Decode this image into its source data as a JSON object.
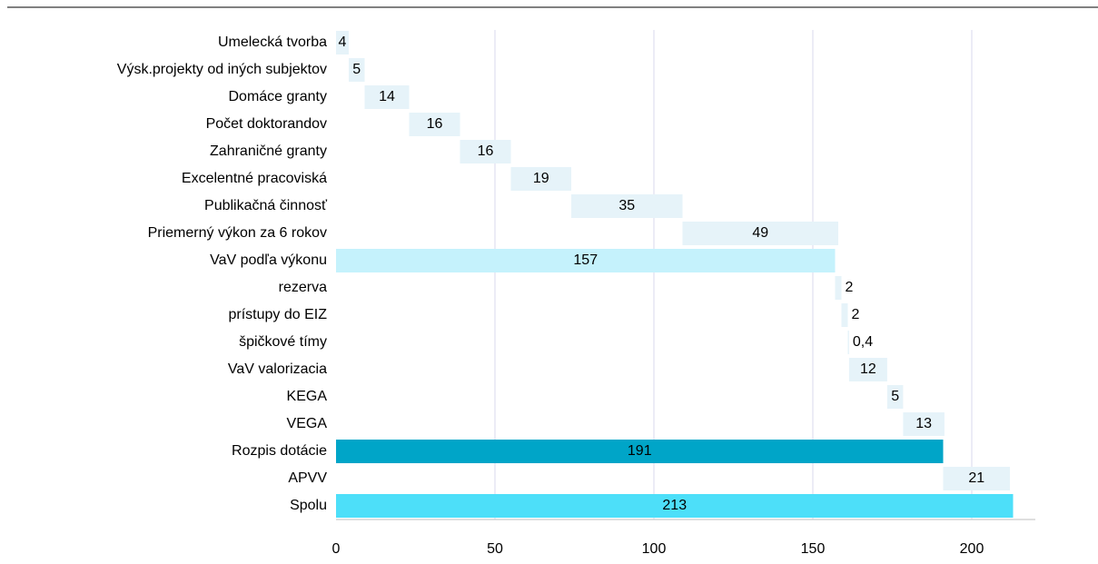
{
  "chart_data": {
    "type": "waterfall",
    "categories": [
      "Umelecká tvorba",
      "Výsk.projekty od iných subjektov",
      "Domáce granty",
      "Počet doktorandov",
      "Zahraničné granty",
      "Excelentné pracoviská",
      "Publikačná  činnosť",
      "Priemerný výkon za 6 rokov",
      "VaV podľa výkonu",
      "rezerva",
      "prístupy do EIZ",
      "špičkové tímy",
      "VaV valorizacia",
      "KEGA",
      "VEGA",
      "Rozpis dotácie",
      "APVV",
      "Spolu"
    ],
    "values": [
      4,
      5,
      14,
      16,
      16,
      19,
      35,
      49,
      157,
      2,
      2,
      0.4,
      12,
      5,
      13,
      191,
      21,
      213
    ],
    "value_labels": [
      "4",
      "5",
      "14",
      "16",
      "16",
      "19",
      "35",
      "49",
      "157",
      "2",
      "2",
      "0,4",
      "12",
      "5",
      "13",
      "191",
      "21",
      "213"
    ],
    "measure": [
      "relative",
      "relative",
      "relative",
      "relative",
      "relative",
      "relative",
      "relative",
      "relative",
      "total",
      "relative",
      "relative",
      "relative",
      "relative",
      "relative",
      "relative",
      "total",
      "relative",
      "total"
    ],
    "colors": [
      "#e6f3f9",
      "#e6f3f9",
      "#e6f3f9",
      "#e6f3f9",
      "#e6f3f9",
      "#e6f3f9",
      "#e6f3f9",
      "#e6f3f9",
      "#c5f2fc",
      "#e6f3f9",
      "#e6f3f9",
      "#e6f3f9",
      "#e6f3f9",
      "#e6f3f9",
      "#e6f3f9",
      "#00a5c8",
      "#e6f3f9",
      "#4ddff9"
    ],
    "xlim": [
      0,
      220
    ],
    "xticks": [
      0,
      50,
      100,
      150,
      200
    ],
    "grid": true
  }
}
